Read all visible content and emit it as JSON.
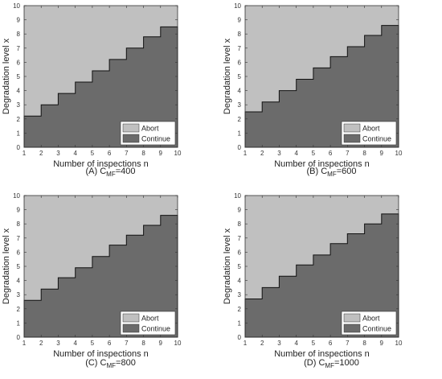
{
  "chart_data": [
    {
      "type": "area",
      "caption_prefix": "(A) C",
      "caption_sub": "MF",
      "caption_suffix": "=400",
      "xlabel": "Number of inspections n",
      "ylabel": "Degradation level x",
      "xlim": [
        1,
        10
      ],
      "ylim": [
        0,
        10
      ],
      "xticks": [
        1,
        2,
        3,
        4,
        5,
        6,
        7,
        8,
        9,
        10
      ],
      "yticks": [
        0,
        1,
        2,
        3,
        4,
        5,
        6,
        7,
        8,
        9,
        10
      ],
      "x_steps": [
        1,
        2,
        3,
        4,
        5,
        6,
        7,
        8,
        9,
        10
      ],
      "threshold": [
        2.2,
        3.0,
        3.8,
        4.6,
        5.4,
        6.2,
        7.0,
        7.8,
        8.5,
        8.5
      ],
      "legend": [
        "Abort",
        "Continue"
      ],
      "legend_position": "bottom-right",
      "colors": {
        "Abort": "#c0c0c0",
        "Continue": "#6b6b6b"
      }
    },
    {
      "type": "area",
      "caption_prefix": "(B) C",
      "caption_sub": "MF",
      "caption_suffix": "=600",
      "xlabel": "Number of inspections n",
      "ylabel": "Degradation level x",
      "xlim": [
        1,
        10
      ],
      "ylim": [
        0,
        10
      ],
      "xticks": [
        1,
        2,
        3,
        4,
        5,
        6,
        7,
        8,
        9,
        10
      ],
      "yticks": [
        0,
        1,
        2,
        3,
        4,
        5,
        6,
        7,
        8,
        9,
        10
      ],
      "x_steps": [
        1,
        2,
        3,
        4,
        5,
        6,
        7,
        8,
        9,
        10
      ],
      "threshold": [
        2.5,
        3.2,
        4.0,
        4.8,
        5.6,
        6.4,
        7.1,
        7.9,
        8.6,
        8.6
      ],
      "legend": [
        "Abort",
        "Continue"
      ],
      "legend_position": "bottom-right",
      "colors": {
        "Abort": "#c0c0c0",
        "Continue": "#6b6b6b"
      }
    },
    {
      "type": "area",
      "caption_prefix": "(C) C",
      "caption_sub": "MF",
      "caption_suffix": "=800",
      "xlabel": "Number of inspections n",
      "ylabel": "Degradation level x",
      "xlim": [
        1,
        10
      ],
      "ylim": [
        0,
        10
      ],
      "xticks": [
        1,
        2,
        3,
        4,
        5,
        6,
        7,
        8,
        9,
        10
      ],
      "yticks": [
        0,
        1,
        2,
        3,
        4,
        5,
        6,
        7,
        8,
        9,
        10
      ],
      "x_steps": [
        1,
        2,
        3,
        4,
        5,
        6,
        7,
        8,
        9,
        10
      ],
      "threshold": [
        2.6,
        3.4,
        4.2,
        4.9,
        5.7,
        6.5,
        7.2,
        7.9,
        8.6,
        8.6
      ],
      "legend": [
        "Abort",
        "Continue"
      ],
      "legend_position": "bottom-right",
      "colors": {
        "Abort": "#c0c0c0",
        "Continue": "#6b6b6b"
      }
    },
    {
      "type": "area",
      "caption_prefix": "(D) C",
      "caption_sub": "MF",
      "caption_suffix": "=1000",
      "xlabel": "Number of inspections n",
      "ylabel": "Degradation level x",
      "xlim": [
        1,
        10
      ],
      "ylim": [
        0,
        10
      ],
      "xticks": [
        1,
        2,
        3,
        4,
        5,
        6,
        7,
        8,
        9,
        10
      ],
      "yticks": [
        0,
        1,
        2,
        3,
        4,
        5,
        6,
        7,
        8,
        9,
        10
      ],
      "x_steps": [
        1,
        2,
        3,
        4,
        5,
        6,
        7,
        8,
        9,
        10
      ],
      "threshold": [
        2.7,
        3.5,
        4.3,
        5.1,
        5.8,
        6.6,
        7.3,
        8.0,
        8.7,
        8.7
      ],
      "legend": [
        "Abort",
        "Continue"
      ],
      "legend_position": "bottom-right",
      "colors": {
        "Abort": "#c0c0c0",
        "Continue": "#6b6b6b"
      }
    }
  ]
}
